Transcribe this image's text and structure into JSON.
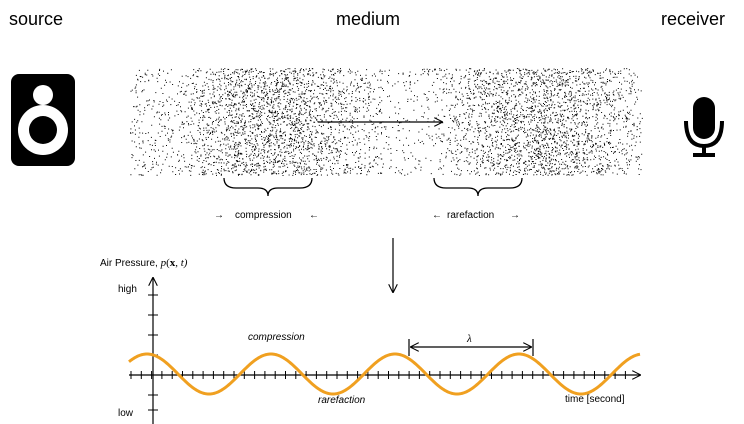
{
  "header": {
    "source": "source",
    "medium": "medium",
    "receiver": "receiver"
  },
  "brackets": {
    "compression": "compression",
    "rarefaction": "rarefaction",
    "arrow_right": "→",
    "arrow_left": "←"
  },
  "plot": {
    "ylabel_text": "Air Pressure, ",
    "ylabel_math": "p",
    "ylabel_bold": "x",
    "ylabel_args": ", t)",
    "ylabel_open": "(",
    "high_label": "high",
    "low_label": "low",
    "compression_label": "compression",
    "rarefaction_label": "rarefaction",
    "wavelength_label": "λ",
    "xlabel": "time [second]"
  },
  "colors": {
    "wave": "#f0a020",
    "particles": "#000000",
    "axis": "#000000"
  },
  "icons": {
    "source": "speaker-icon",
    "receiver": "microphone-icon"
  }
}
